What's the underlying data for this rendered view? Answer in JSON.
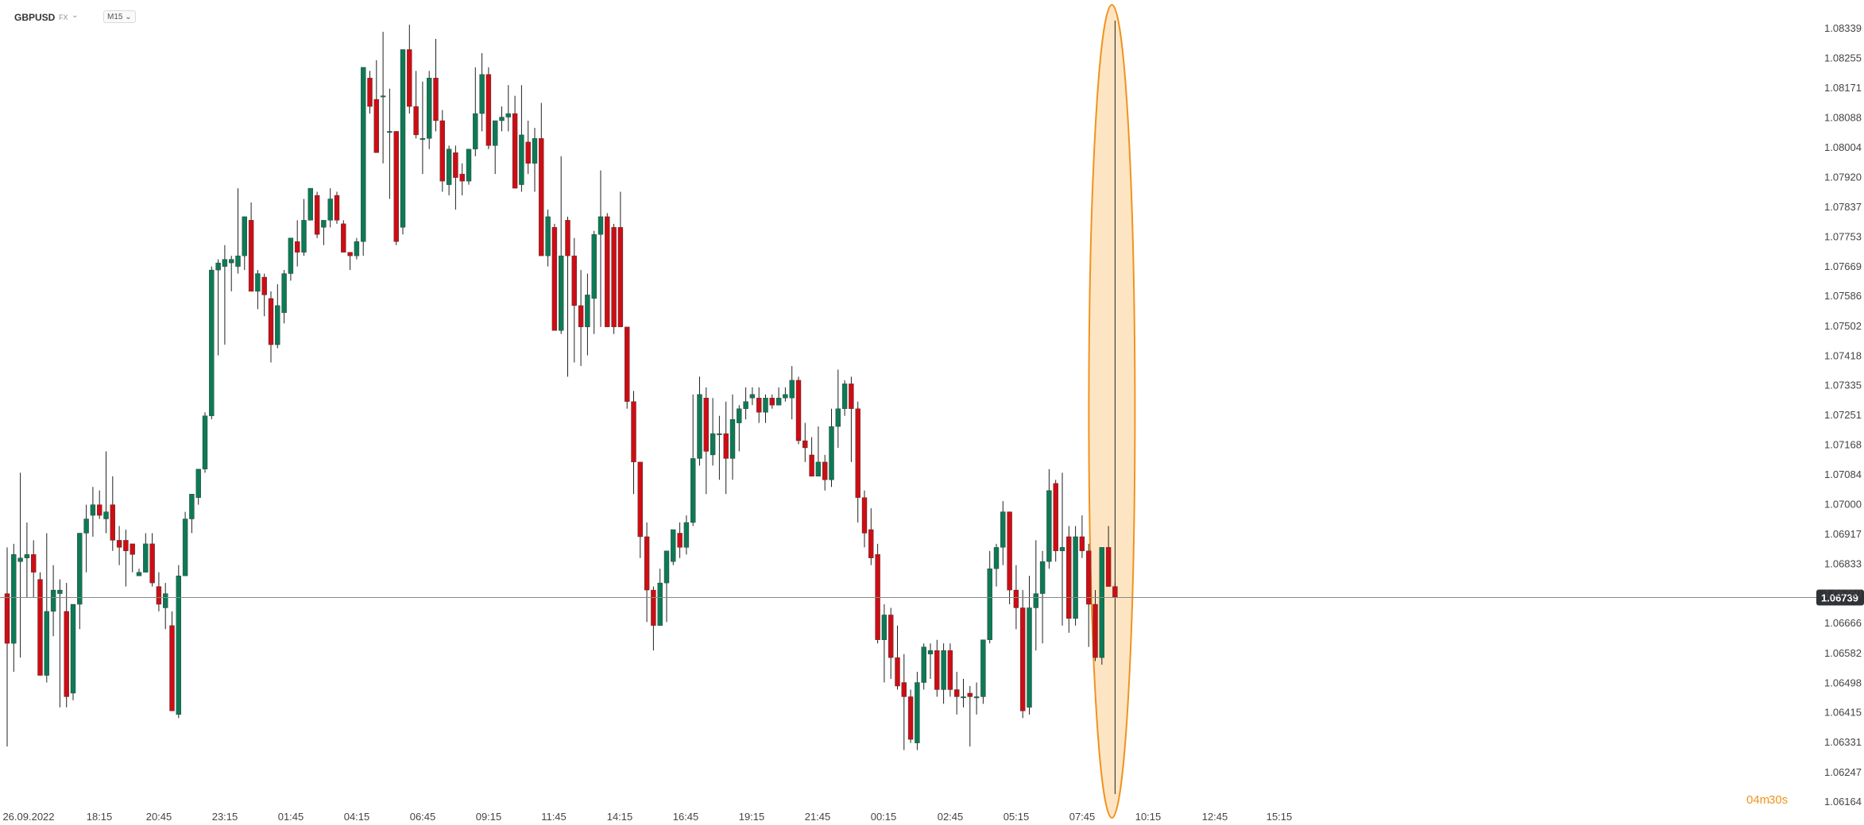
{
  "header": {
    "symbol": "GBPUSD",
    "market": "FX",
    "timeframe": "M15"
  },
  "colors": {
    "up": "#0d7a55",
    "down": "#cc0e14",
    "wick": "#222222",
    "last_line": "#888888",
    "price_box": "#2f3237",
    "highlight_fill": "#fde5c4",
    "highlight_stroke": "#f0931e"
  },
  "countdown": {
    "minutes": "04m",
    "seconds": "30s"
  },
  "chart_data": {
    "type": "candlestick",
    "title": "",
    "y_ticks": [
      "1.08339",
      "1.08255",
      "1.08171",
      "1.08088",
      "1.08004",
      "1.07920",
      "1.07837",
      "1.07753",
      "1.07669",
      "1.07586",
      "1.07502",
      "1.07418",
      "1.07335",
      "1.07251",
      "1.07168",
      "1.07084",
      "1.07000",
      "1.06917",
      "1.06833",
      "1.06750",
      "1.06666",
      "1.06582",
      "1.06498",
      "1.06415",
      "1.06331",
      "1.06247",
      "1.06164"
    ],
    "ylim": [
      1.06164,
      1.08339
    ],
    "x_tick_labels": [
      "26.09.2022",
      "18:15",
      "20:45",
      "23:15",
      "01:45",
      "04:15",
      "06:45",
      "09:15",
      "11:45",
      "14:15",
      "16:45",
      "19:15",
      "21:45",
      "00:15",
      "02:45",
      "05:15",
      "07:45",
      "10:15",
      "12:45",
      "15:15"
    ],
    "last_price": "1.06739",
    "series": [
      {
        "values": [
          [
            1.0675,
            1.0688,
            1.0632,
            1.0661
          ],
          [
            1.0661,
            1.0689,
            1.0653,
            1.0686
          ],
          [
            1.0684,
            1.0709,
            1.0657,
            1.0685
          ],
          [
            1.0685,
            1.0695,
            1.0674,
            1.0686
          ],
          [
            1.0686,
            1.069,
            1.0674,
            1.0681
          ],
          [
            1.0679,
            1.0681,
            1.0652,
            1.0652
          ],
          [
            1.0652,
            1.0692,
            1.065,
            1.067
          ],
          [
            1.067,
            1.0683,
            1.0663,
            1.0676
          ],
          [
            1.0675,
            1.0679,
            1.0643,
            1.0676
          ],
          [
            1.067,
            1.0678,
            1.0643,
            1.0646
          ],
          [
            1.0647,
            1.0672,
            1.0645,
            1.0672
          ],
          [
            1.0672,
            1.0692,
            1.0665,
            1.0692
          ],
          [
            1.0692,
            1.07,
            1.0681,
            1.0696
          ],
          [
            1.0697,
            1.0705,
            1.0691,
            1.07
          ],
          [
            1.07,
            1.0704,
            1.0696,
            1.0697
          ],
          [
            1.0696,
            1.0715,
            1.0692,
            1.0698
          ],
          [
            1.07,
            1.0708,
            1.0687,
            1.069
          ],
          [
            1.069,
            1.0694,
            1.0683,
            1.0688
          ],
          [
            1.069,
            1.0693,
            1.0677,
            1.0687
          ],
          [
            1.0689,
            1.0689,
            1.0681,
            1.0686
          ],
          [
            1.068,
            1.0682,
            1.068,
            1.0681
          ],
          [
            1.0681,
            1.0692,
            1.0681,
            1.0689
          ],
          [
            1.0689,
            1.0692,
            1.0677,
            1.0678
          ],
          [
            1.0677,
            1.0681,
            1.067,
            1.0672
          ],
          [
            1.0671,
            1.0678,
            1.0665,
            1.0675
          ],
          [
            1.0666,
            1.067,
            1.0642,
            1.0642
          ],
          [
            1.0641,
            1.0683,
            1.064,
            1.068
          ],
          [
            1.068,
            1.0698,
            1.068,
            1.0696
          ],
          [
            1.0696,
            1.0703,
            1.0692,
            1.0703
          ],
          [
            1.0702,
            1.071,
            1.07,
            1.071
          ],
          [
            1.071,
            1.0726,
            1.0709,
            1.0725
          ],
          [
            1.0725,
            1.0767,
            1.0724,
            1.0766
          ],
          [
            1.0766,
            1.0769,
            1.0742,
            1.0768
          ],
          [
            1.0767,
            1.0773,
            1.0745,
            1.0769
          ],
          [
            1.0768,
            1.077,
            1.076,
            1.0769
          ],
          [
            1.0767,
            1.0789,
            1.0765,
            1.077
          ],
          [
            1.077,
            1.0781,
            1.0766,
            1.0781
          ],
          [
            1.078,
            1.0785,
            1.076,
            1.076
          ],
          [
            1.076,
            1.0766,
            1.0755,
            1.0765
          ],
          [
            1.0764,
            1.0765,
            1.0753,
            1.0759
          ],
          [
            1.0758,
            1.076,
            1.074,
            1.0745
          ],
          [
            1.0745,
            1.0762,
            1.0744,
            1.0756
          ],
          [
            1.0754,
            1.0766,
            1.0751,
            1.0765
          ],
          [
            1.0765,
            1.0775,
            1.0763,
            1.0775
          ],
          [
            1.0774,
            1.078,
            1.0767,
            1.0771
          ],
          [
            1.0771,
            1.0786,
            1.077,
            1.078
          ],
          [
            1.078,
            1.0789,
            1.078,
            1.0789
          ],
          [
            1.0787,
            1.0788,
            1.0775,
            1.0776
          ],
          [
            1.0778,
            1.078,
            1.0773,
            1.078
          ],
          [
            1.078,
            1.0789,
            1.0778,
            1.0786
          ],
          [
            1.0787,
            1.0788,
            1.0779,
            1.078
          ],
          [
            1.0779,
            1.078,
            1.0774,
            1.0771
          ],
          [
            1.0771,
            1.0771,
            1.0766,
            1.077
          ],
          [
            1.077,
            1.0775,
            1.0769,
            1.0774
          ],
          [
            1.0774,
            1.0823,
            1.077,
            1.0823
          ],
          [
            1.082,
            1.0822,
            1.081,
            1.0812
          ],
          [
            1.0814,
            1.0825,
            1.0799,
            1.0799
          ],
          [
            1.0815,
            1.0833,
            1.0796,
            1.0815
          ],
          [
            1.0805,
            1.0817,
            1.0786,
            1.0805
          ],
          [
            1.0805,
            1.0805,
            1.0773,
            1.0774
          ],
          [
            1.0778,
            1.0828,
            1.0776,
            1.0828
          ],
          [
            1.0828,
            1.0835,
            1.081,
            1.0812
          ],
          [
            1.0812,
            1.0822,
            1.0803,
            1.0804
          ],
          [
            1.0803,
            1.0819,
            1.0793,
            1.0803
          ],
          [
            1.0803,
            1.0822,
            1.08,
            1.082
          ],
          [
            1.082,
            1.0831,
            1.0805,
            1.0808
          ],
          [
            1.0808,
            1.0811,
            1.0788,
            1.0791
          ],
          [
            1.079,
            1.0801,
            1.0787,
            1.08
          ],
          [
            1.0799,
            1.0801,
            1.0783,
            1.0792
          ],
          [
            1.0793,
            1.0796,
            1.0787,
            1.0791
          ],
          [
            1.0791,
            1.08,
            1.079,
            1.08
          ],
          [
            1.08,
            1.0823,
            1.0798,
            1.081
          ],
          [
            1.081,
            1.0827,
            1.0805,
            1.0821
          ],
          [
            1.0821,
            1.0823,
            1.08,
            1.0801
          ],
          [
            1.0801,
            1.0806,
            1.0793,
            1.0808
          ],
          [
            1.0808,
            1.0812,
            1.0805,
            1.0809
          ],
          [
            1.0809,
            1.0818,
            1.0805,
            1.081
          ],
          [
            1.081,
            1.0815,
            1.0789,
            1.0789
          ],
          [
            1.079,
            1.0818,
            1.0788,
            1.0804
          ],
          [
            1.0802,
            1.0808,
            1.0793,
            1.0796
          ],
          [
            1.0796,
            1.0806,
            1.0788,
            1.0803
          ],
          [
            1.0803,
            1.0813,
            1.077,
            1.077
          ],
          [
            1.077,
            1.0783,
            1.0767,
            1.0781
          ],
          [
            1.0778,
            1.0779,
            1.0749,
            1.0749
          ],
          [
            1.0749,
            1.0798,
            1.0748,
            1.077
          ],
          [
            1.078,
            1.0781,
            1.0736,
            1.077
          ],
          [
            1.077,
            1.0775,
            1.074,
            1.0756
          ],
          [
            1.0756,
            1.0766,
            1.0739,
            1.075
          ],
          [
            1.075,
            1.0765,
            1.0742,
            1.0759
          ],
          [
            1.0758,
            1.0777,
            1.0748,
            1.0776
          ],
          [
            1.0776,
            1.0794,
            1.075,
            1.0781
          ],
          [
            1.0781,
            1.0782,
            1.075,
            1.075
          ],
          [
            1.0778,
            1.0779,
            1.0748,
            1.075
          ],
          [
            1.0778,
            1.0788,
            1.075,
            1.075
          ],
          [
            1.075,
            1.075,
            1.0727,
            1.0729
          ],
          [
            1.0729,
            1.0732,
            1.0703,
            1.0712
          ],
          [
            1.0712,
            1.0712,
            1.0685,
            1.0691
          ],
          [
            1.0691,
            1.0695,
            1.0667,
            1.0676
          ],
          [
            1.0676,
            1.0677,
            1.0659,
            1.0666
          ],
          [
            1.0666,
            1.0682,
            1.0666,
            1.0678
          ],
          [
            1.0678,
            1.0687,
            1.0667,
            1.0687
          ],
          [
            1.0684,
            1.0693,
            1.0683,
            1.0693
          ],
          [
            1.0692,
            1.0695,
            1.0685,
            1.0688
          ],
          [
            1.0688,
            1.0697,
            1.0686,
            1.0695
          ],
          [
            1.0695,
            1.0731,
            1.0694,
            1.0713
          ],
          [
            1.0713,
            1.0736,
            1.0711,
            1.0731
          ],
          [
            1.073,
            1.0733,
            1.0703,
            1.0715
          ],
          [
            1.0714,
            1.073,
            1.0711,
            1.072
          ],
          [
            1.072,
            1.0725,
            1.0707,
            1.072
          ],
          [
            1.072,
            1.0729,
            1.0703,
            1.0713
          ],
          [
            1.0713,
            1.0731,
            1.0707,
            1.0724
          ],
          [
            1.0723,
            1.0728,
            1.0715,
            1.0727
          ],
          [
            1.0727,
            1.0733,
            1.0724,
            1.0729
          ],
          [
            1.073,
            1.0733,
            1.0728,
            1.0731
          ],
          [
            1.073,
            1.0733,
            1.0723,
            1.0726
          ],
          [
            1.0726,
            1.0731,
            1.0723,
            1.073
          ],
          [
            1.073,
            1.0731,
            1.0727,
            1.0728
          ],
          [
            1.0728,
            1.0733,
            1.0728,
            1.073
          ],
          [
            1.073,
            1.0733,
            1.0729,
            1.0731
          ],
          [
            1.073,
            1.0739,
            1.0724,
            1.0735
          ],
          [
            1.0735,
            1.0736,
            1.0717,
            1.0718
          ],
          [
            1.0718,
            1.0723,
            1.0712,
            1.0716
          ],
          [
            1.0714,
            1.0719,
            1.0708,
            1.0708
          ],
          [
            1.0708,
            1.0722,
            1.0708,
            1.0712
          ],
          [
            1.0712,
            1.0714,
            1.0704,
            1.0707
          ],
          [
            1.0707,
            1.0727,
            1.0705,
            1.0722
          ],
          [
            1.0722,
            1.0738,
            1.0716,
            1.0727
          ],
          [
            1.0727,
            1.0735,
            1.0725,
            1.0734
          ],
          [
            1.0734,
            1.0736,
            1.0712,
            1.0727
          ],
          [
            1.0727,
            1.0729,
            1.0695,
            1.0702
          ],
          [
            1.0702,
            1.0704,
            1.0688,
            1.0692
          ],
          [
            1.0693,
            1.0699,
            1.0683,
            1.0685
          ],
          [
            1.0686,
            1.0689,
            1.0661,
            1.0662
          ],
          [
            1.0662,
            1.0672,
            1.065,
            1.0669
          ],
          [
            1.0669,
            1.0671,
            1.0651,
            1.0657
          ],
          [
            1.0657,
            1.0666,
            1.0648,
            1.0649
          ],
          [
            1.065,
            1.0658,
            1.0631,
            1.0646
          ],
          [
            1.0646,
            1.0648,
            1.0633,
            1.0634
          ],
          [
            1.0633,
            1.0653,
            1.0631,
            1.065
          ],
          [
            1.065,
            1.0661,
            1.0648,
            1.066
          ],
          [
            1.0658,
            1.0661,
            1.0651,
            1.0659
          ],
          [
            1.0659,
            1.0662,
            1.0646,
            1.0648
          ],
          [
            1.0648,
            1.0661,
            1.0644,
            1.0659
          ],
          [
            1.0659,
            1.0661,
            1.0646,
            1.0648
          ],
          [
            1.0648,
            1.0653,
            1.0641,
            1.0646
          ],
          [
            1.0646,
            1.0651,
            1.0643,
            1.0646
          ],
          [
            1.0647,
            1.0649,
            1.0632,
            1.0646
          ],
          [
            1.0646,
            1.065,
            1.0641,
            1.0646
          ],
          [
            1.0646,
            1.0662,
            1.0644,
            1.0662
          ],
          [
            1.0662,
            1.0687,
            1.0661,
            1.0682
          ],
          [
            1.0682,
            1.0689,
            1.0677,
            1.0688
          ],
          [
            1.0688,
            1.0701,
            1.0683,
            1.0698
          ],
          [
            1.0698,
            1.0698,
            1.0672,
            1.0676
          ],
          [
            1.0676,
            1.0683,
            1.0665,
            1.0671
          ],
          [
            1.0671,
            1.0676,
            1.064,
            1.0642
          ],
          [
            1.0643,
            1.068,
            1.0641,
            1.0671
          ],
          [
            1.0671,
            1.069,
            1.0659,
            1.0675
          ],
          [
            1.0675,
            1.0687,
            1.0661,
            1.0684
          ],
          [
            1.0684,
            1.071,
            1.0682,
            1.0704
          ],
          [
            1.0706,
            1.0707,
            1.0684,
            1.0687
          ],
          [
            1.0687,
            1.0709,
            1.0666,
            1.0688
          ],
          [
            1.0691,
            1.0694,
            1.0664,
            1.0668
          ],
          [
            1.0668,
            1.0694,
            1.0666,
            1.0691
          ],
          [
            1.0691,
            1.0697,
            1.0685,
            1.0687
          ],
          [
            1.0687,
            1.0689,
            1.066,
            1.0672
          ],
          [
            1.0672,
            1.0676,
            1.0656,
            1.0657
          ],
          [
            1.0657,
            1.0688,
            1.0655,
            1.0688
          ],
          [
            1.0688,
            1.0694,
            1.0677,
            1.0677
          ],
          [
            1.0677,
            1.0678,
            1.0674,
            1.0674
          ]
        ]
      }
    ]
  }
}
